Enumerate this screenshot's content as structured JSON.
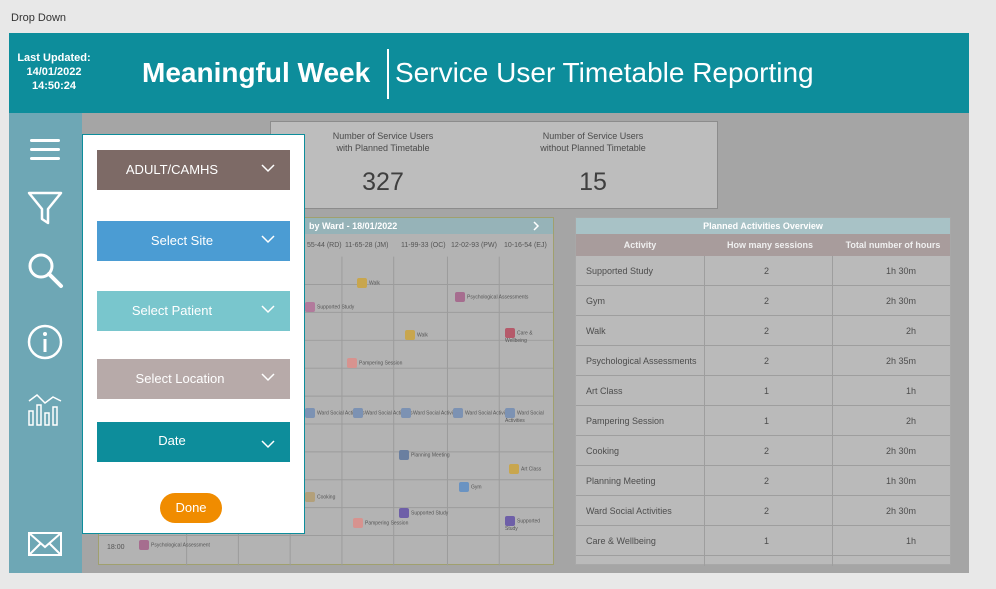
{
  "window": {
    "title": "Drop Down"
  },
  "header": {
    "last_updated_label": "Last Updated:",
    "last_updated_date": "14/01/2022",
    "last_updated_time": "14:50:24",
    "title_main": "Meaningful Week",
    "title_sub": "Service User Timetable Reporting"
  },
  "kpi": {
    "with_label_1": "Number of Service Users",
    "with_label_2": "with Planned Timetable",
    "with_value": "327",
    "without_label_1": "Number of Service Users",
    "without_label_2": "without Planned Timetable",
    "without_value": "15"
  },
  "grid": {
    "title": "by Ward - 18/01/2022",
    "columns": [
      "55-44 (RD)",
      "11-65-28 (JM)",
      "11-99-33 (OC)",
      "12-02-93 (PW)",
      "10-16-54 (EJ)"
    ],
    "time_label": "18:00",
    "cells": {
      "walk": "Walk",
      "psych": "Psychological Assessments",
      "supported": "Supported Study",
      "care": "Care & Wellbeing",
      "pampering": "Pampering Session",
      "ward_social": "Ward Social Activities",
      "planning": "Planning Meeting",
      "art": "Art Class",
      "gym": "Gym",
      "cooking": "Cooking",
      "psych2": "Psychological Assessment"
    }
  },
  "overview": {
    "title": "Planned Activities Overview",
    "col_activity": "Activity",
    "col_sessions": "How many sessions",
    "col_hours": "Total number of hours",
    "rows": [
      {
        "activity": "Supported Study",
        "sessions": "2",
        "hours": "1h 30m"
      },
      {
        "activity": "Gym",
        "sessions": "2",
        "hours": "2h 30m"
      },
      {
        "activity": "Walk",
        "sessions": "2",
        "hours": "2h"
      },
      {
        "activity": "Psychological Assessments",
        "sessions": "2",
        "hours": "2h 35m"
      },
      {
        "activity": "Art Class",
        "sessions": "1",
        "hours": "1h"
      },
      {
        "activity": "Pampering Session",
        "sessions": "1",
        "hours": "2h"
      },
      {
        "activity": "Cooking",
        "sessions": "2",
        "hours": "2h 30m"
      },
      {
        "activity": "Planning Meeting",
        "sessions": "2",
        "hours": "1h 30m"
      },
      {
        "activity": "Ward Social Activities",
        "sessions": "2",
        "hours": "2h 30m"
      },
      {
        "activity": "Care & Wellbeing",
        "sessions": "1",
        "hours": "1h"
      }
    ]
  },
  "dropdowns": {
    "adult_camhs": "ADULT/CAMHS",
    "site": "Select Site",
    "patient": "Select Patient",
    "location": "Select Location",
    "date": "Date",
    "done": "Done"
  },
  "sidebar": {
    "icons": [
      "menu-icon",
      "filter-icon",
      "search-icon",
      "info-icon",
      "chart-icon",
      "mail-icon"
    ]
  },
  "colors": {
    "header": "#0d8d9b",
    "adult_camhs": "#7d6a66",
    "site": "#4b9cd3",
    "patient": "#79c6cd",
    "location": "#b7aaa9",
    "date": "#0d8d9b",
    "done": "#f08c00"
  }
}
